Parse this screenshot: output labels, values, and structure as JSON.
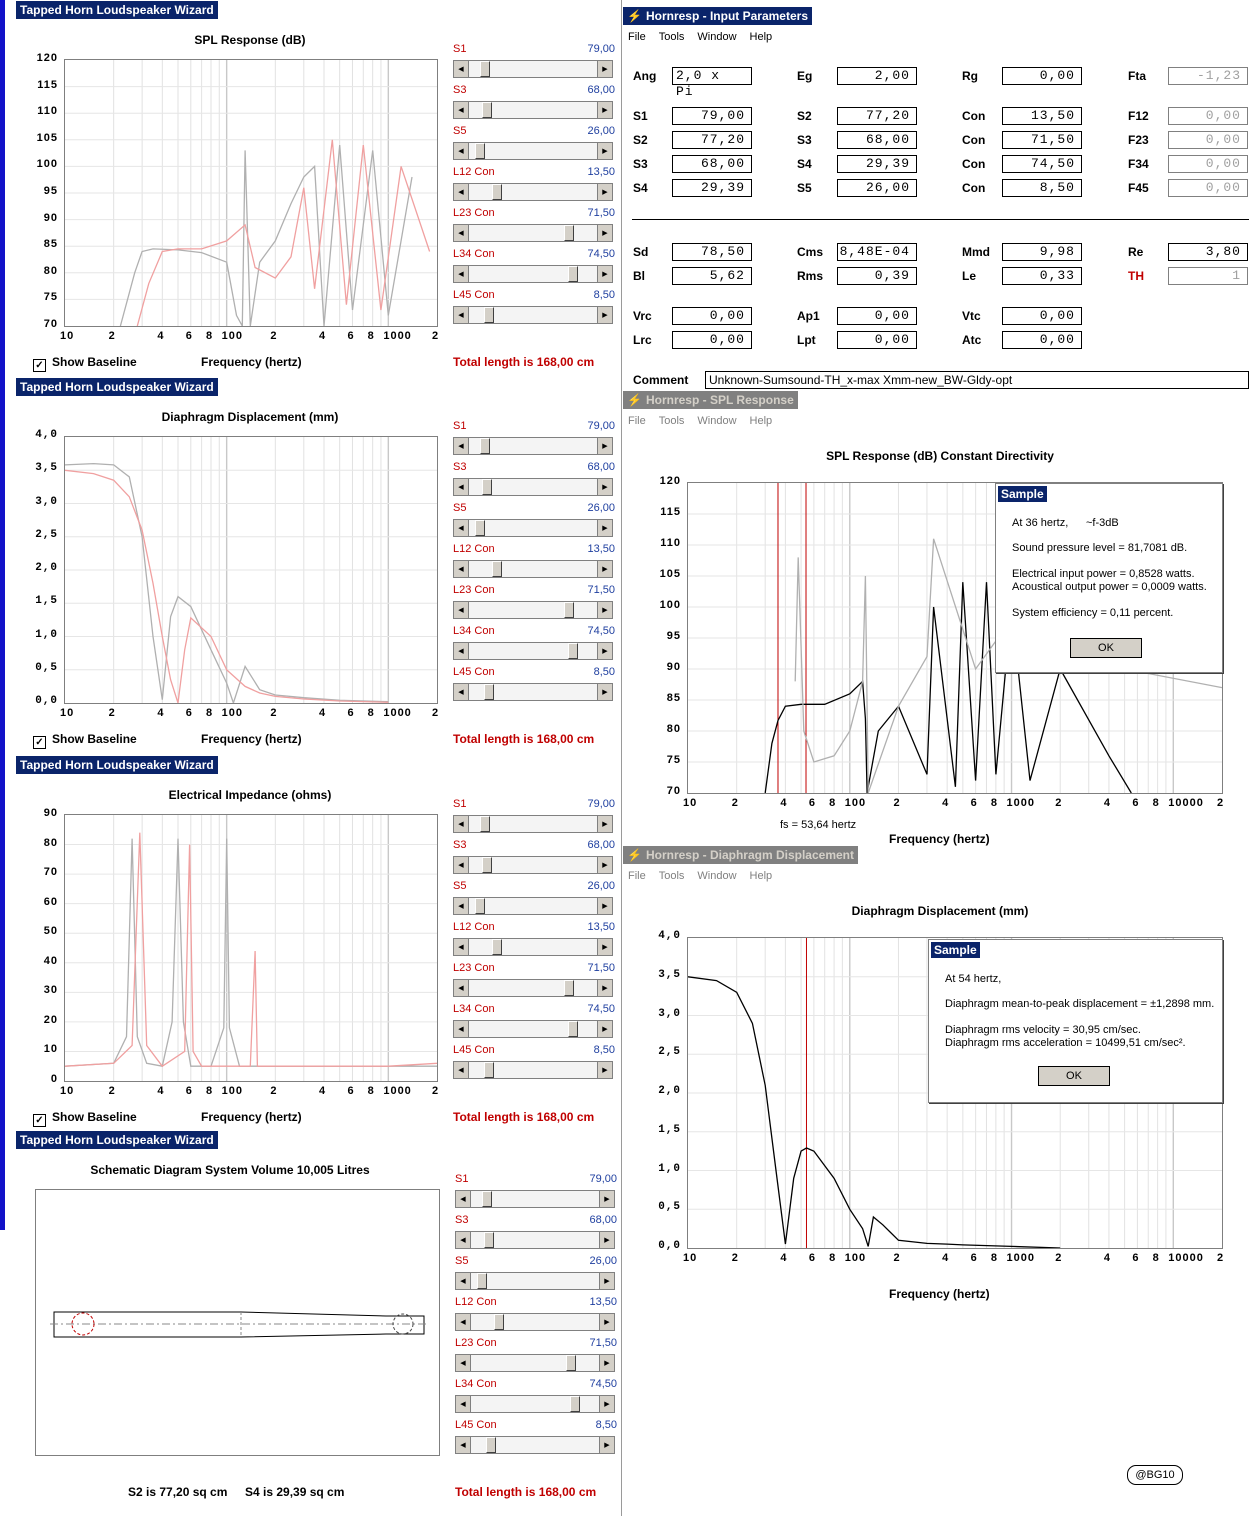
{
  "wizard": {
    "title": "Tapped Horn Loudspeaker Wizard",
    "show_baseline": "Show Baseline",
    "frequency_label": "Frequency (hertz)",
    "total_length": "Total length is 168,00 cm",
    "sliders": [
      {
        "label": "S1",
        "value": "79,00",
        "position": 0.1
      },
      {
        "label": "S3",
        "value": "68,00",
        "position": 0.12
      },
      {
        "label": "S5",
        "value": "26,00",
        "position": 0.06
      },
      {
        "label": "L12  Con",
        "value": "13,50",
        "position": 0.2
      },
      {
        "label": "L23  Con",
        "value": "71,50",
        "position": 0.8
      },
      {
        "label": "L34  Con",
        "value": "74,50",
        "position": 0.83
      },
      {
        "label": "L45  Con",
        "value": "8,50",
        "position": 0.13
      }
    ],
    "x_ticks": [
      "10",
      "2",
      "4",
      "6",
      "8",
      "100",
      "2",
      "4",
      "6",
      "8",
      "1000",
      "2"
    ],
    "spl": {
      "title": "SPL Response (dB)",
      "y_ticks": [
        "120",
        "115",
        "110",
        "105",
        "100",
        "95",
        "90",
        "85",
        "80",
        "75",
        "70"
      ]
    },
    "disp": {
      "title": "Diaphragm Displacement (mm)",
      "y_ticks": [
        "4,0",
        "3,5",
        "3,0",
        "2,5",
        "2,0",
        "1,5",
        "1,0",
        "0,5",
        "0,0"
      ]
    },
    "imp": {
      "title": "Electrical Impedance (ohms)",
      "y_ticks": [
        "90",
        "80",
        "70",
        "60",
        "50",
        "40",
        "30",
        "20",
        "10",
        "0"
      ]
    },
    "schem": {
      "title": "Schematic Diagram    System Volume 10,005 Litres",
      "s2": "S2 is 77,20 sq cm",
      "s4": "S4 is 29,39 sq cm"
    }
  },
  "input_params": {
    "title": "Hornresp - Input Parameters",
    "menu": [
      "File",
      "Tools",
      "Window",
      "Help"
    ],
    "rows": [
      [
        {
          "l": "Ang",
          "v": "2,0 x Pi"
        },
        {
          "l": "Eg",
          "v": "2,00"
        },
        {
          "l": "Rg",
          "v": "0,00"
        },
        {
          "l": "Fta",
          "v": "-1,23",
          "dis": true
        }
      ],
      [
        {
          "l": "S1",
          "v": "79,00"
        },
        {
          "l": "S2",
          "v": "77,20"
        },
        {
          "l": "Con",
          "v": "13,50"
        },
        {
          "l": "F12",
          "v": "0,00",
          "dis": true
        }
      ],
      [
        {
          "l": "S2",
          "v": "77,20"
        },
        {
          "l": "S3",
          "v": "68,00"
        },
        {
          "l": "Con",
          "v": "71,50"
        },
        {
          "l": "F23",
          "v": "0,00",
          "dis": true
        }
      ],
      [
        {
          "l": "S3",
          "v": "68,00"
        },
        {
          "l": "S4",
          "v": "29,39"
        },
        {
          "l": "Con",
          "v": "74,50"
        },
        {
          "l": "F34",
          "v": "0,00",
          "dis": true
        }
      ],
      [
        {
          "l": "S4",
          "v": "29,39"
        },
        {
          "l": "S5",
          "v": "26,00"
        },
        {
          "l": "Con",
          "v": "8,50"
        },
        {
          "l": "F45",
          "v": "0,00",
          "dis": true
        }
      ],
      [
        {
          "l": "Sd",
          "v": "78,50"
        },
        {
          "l": "Cms",
          "v": "8,48E-04"
        },
        {
          "l": "Mmd",
          "v": "9,98"
        },
        {
          "l": "Re",
          "v": "3,80"
        }
      ],
      [
        {
          "l": "Bl",
          "v": "5,62"
        },
        {
          "l": "Rms",
          "v": "0,39"
        },
        {
          "l": "Le",
          "v": "0,33"
        },
        {
          "l": "TH",
          "v": "1",
          "dis": true,
          "red": true
        }
      ],
      [
        {
          "l": "Vrc",
          "v": "0,00"
        },
        {
          "l": "Ap1",
          "v": "0,00"
        },
        {
          "l": "Vtc",
          "v": "0,00"
        }
      ],
      [
        {
          "l": "Lrc",
          "v": "0,00"
        },
        {
          "l": "Lpt",
          "v": "0,00"
        },
        {
          "l": "Atc",
          "v": "0,00"
        }
      ]
    ],
    "comment_label": "Comment",
    "comment": "Unknown-Sumsound-TH_x-max Xmm-new_BW-Gldy-opt"
  },
  "spl_window": {
    "title": "Hornresp - SPL Response",
    "chart_title": "SPL Response (dB)    Constant Directivity",
    "y_ticks": [
      "120",
      "115",
      "110",
      "105",
      "100",
      "95",
      "90",
      "85",
      "80",
      "75",
      "70"
    ],
    "x_ticks": [
      "10",
      "2",
      "4",
      "6",
      "8",
      "100",
      "2",
      "4",
      "6",
      "8",
      "1000",
      "2",
      "4",
      "6",
      "8",
      "10000",
      "2"
    ],
    "fs_label": "fs = 53,64 hertz",
    "xlabel": "Frequency (hertz)",
    "dialog": {
      "title": "Sample",
      "line1": "At 36 hertz,",
      "line1b": "~f-3dB",
      "line2": "Sound pressure level = 81,7081 dB.",
      "line3": "Electrical input power = 0,8528 watts.",
      "line4": "Acoustical output power = 0,0009 watts.",
      "line5": "System efficiency = 0,11 percent.",
      "ok": "OK"
    }
  },
  "disp_window": {
    "title": "Hornresp - Diaphragm Displacement",
    "chart_title": "Diaphragm Displacement (mm)",
    "y_ticks": [
      "4,0",
      "3,5",
      "3,0",
      "2,5",
      "2,0",
      "1,5",
      "1,0",
      "0,5",
      "0,0"
    ],
    "x_ticks": [
      "10",
      "2",
      "4",
      "6",
      "8",
      "100",
      "2",
      "4",
      "6",
      "8",
      "1000",
      "2",
      "4",
      "6",
      "8",
      "10000",
      "2"
    ],
    "xlabel": "Frequency (hertz)",
    "dialog": {
      "title": "Sample",
      "line1": "At 54 hertz,",
      "line2": "Diaphragm mean-to-peak displacement = ±1,2898 mm.",
      "line3": "Diaphragm rms velocity = 30,95 cm/sec.",
      "line4": "Diaphragm rms acceleration = 10499,51 cm/sec².",
      "ok": "OK"
    }
  },
  "badge": "@BG10",
  "chart_data": [
    {
      "type": "line",
      "title": "SPL Response (dB)",
      "xlabel": "Frequency (hertz)",
      "x_scale": "log",
      "xlim": [
        10,
        2000
      ],
      "ylim": [
        70,
        120
      ],
      "series": [
        {
          "color": "#b0b0b0",
          "x": [
            22,
            27,
            30,
            35,
            50,
            70,
            100,
            115,
            125,
            130,
            140,
            160,
            200,
            250,
            300,
            350,
            400,
            500,
            600,
            800,
            1000,
            1400
          ],
          "y": [
            70,
            80,
            84,
            84.5,
            84.3,
            83.8,
            82,
            72,
            70,
            103,
            70,
            82,
            86,
            93,
            98,
            100,
            70,
            104,
            73,
            103,
            72,
            98
          ]
        },
        {
          "color": "#f0a0a0",
          "x": [
            28,
            33,
            40,
            50,
            70,
            100,
            130,
            150,
            200,
            250,
            300,
            350,
            450,
            550,
            700,
            900,
            1200,
            1800
          ],
          "y": [
            70,
            78,
            84,
            84.5,
            84.5,
            86,
            89,
            81,
            79,
            83,
            96,
            77,
            105,
            74,
            104,
            73,
            100,
            84
          ]
        }
      ]
    },
    {
      "type": "line",
      "title": "Diaphragm Displacement (mm)",
      "xlabel": "Frequency (hertz)",
      "x_scale": "log",
      "xlim": [
        10,
        2000
      ],
      "ylim": [
        0,
        4
      ],
      "series": [
        {
          "color": "#b0b0b0",
          "x": [
            10,
            15,
            20,
            25,
            30,
            35,
            40,
            45,
            50,
            60,
            80,
            100,
            110,
            130,
            160,
            200,
            300,
            500,
            1000
          ],
          "y": [
            3.58,
            3.6,
            3.58,
            3.4,
            2.5,
            1.0,
            0.05,
            1.3,
            1.6,
            1.45,
            0.8,
            0.3,
            0.0,
            0.55,
            0.2,
            0.12,
            0.08,
            0.04,
            0.02
          ]
        },
        {
          "color": "#f0a0a0",
          "x": [
            10,
            15,
            20,
            25,
            30,
            35,
            40,
            45,
            50,
            55,
            60,
            80,
            100,
            130,
            160,
            200,
            300,
            500,
            1000
          ],
          "y": [
            3.5,
            3.45,
            3.35,
            3.1,
            2.6,
            1.8,
            1.0,
            0.35,
            0.0,
            0.8,
            1.28,
            1.0,
            0.5,
            0.25,
            0.15,
            0.1,
            0.06,
            0.03,
            0.01
          ]
        }
      ]
    },
    {
      "type": "line",
      "title": "Electrical Impedance (ohms)",
      "xlabel": "Frequency (hertz)",
      "x_scale": "log",
      "xlim": [
        10,
        2000
      ],
      "ylim": [
        0,
        90
      ],
      "series": [
        {
          "color": "#b0b0b0",
          "x": [
            10,
            20,
            24,
            26,
            28,
            32,
            40,
            46,
            50,
            54,
            60,
            80,
            96,
            100,
            104,
            120,
            200,
            1000,
            2000
          ],
          "y": [
            5,
            6,
            15,
            82,
            15,
            6,
            5,
            20,
            82,
            20,
            5,
            5,
            18,
            82,
            18,
            5,
            5,
            5,
            5
          ]
        },
        {
          "color": "#f0a0a0",
          "x": [
            10,
            20,
            26,
            29,
            32,
            40,
            55,
            59,
            62,
            70,
            100,
            140,
            150,
            155,
            200,
            1000,
            2000
          ],
          "y": [
            5,
            6,
            12,
            84,
            12,
            5,
            10,
            80,
            10,
            5,
            5,
            5,
            44,
            5,
            5,
            5,
            6
          ]
        }
      ]
    },
    {
      "type": "line",
      "title": "SPL Response (dB)    Constant Directivity",
      "xlabel": "Frequency (hertz)",
      "x_scale": "log",
      "xlim": [
        10,
        20000
      ],
      "ylim": [
        70,
        120
      ],
      "series": [
        {
          "color": "#000000",
          "x": [
            30,
            33,
            36,
            40,
            50,
            70,
            100,
            120,
            125,
            128,
            150,
            200,
            300,
            330,
            450,
            500,
            600,
            700,
            800,
            1000,
            1300,
            2000,
            4000,
            5500
          ],
          "y": [
            70,
            78,
            81.7,
            84,
            84.3,
            84.3,
            86,
            88,
            82,
            70,
            80,
            84,
            73,
            100,
            71,
            104,
            72,
            104,
            73,
            100,
            72,
            90,
            76,
            70
          ]
        },
        {
          "color": "#b0b0b0",
          "x": [
            46,
            48,
            52,
            60,
            80,
            100,
            120,
            125,
            130,
            200,
            300,
            330,
            600,
            1000,
            5000,
            20000
          ],
          "y": [
            88,
            108,
            80,
            75,
            76,
            80,
            88,
            105,
            70,
            84,
            92,
            111,
            90,
            98,
            90,
            87
          ]
        }
      ],
      "annotations": [
        "fs = 53,64 hertz"
      ]
    },
    {
      "type": "line",
      "title": "Diaphragm Displacement (mm)",
      "xlabel": "Frequency (hertz)",
      "x_scale": "log",
      "xlim": [
        10,
        20000
      ],
      "ylim": [
        0,
        4
      ],
      "series": [
        {
          "color": "#000000",
          "x": [
            10,
            15,
            20,
            25,
            30,
            35,
            40,
            45,
            50,
            54,
            60,
            80,
            100,
            120,
            130,
            140,
            160,
            200,
            300,
            400,
            500,
            1000,
            2000
          ],
          "y": [
            3.5,
            3.45,
            3.3,
            2.9,
            2.1,
            1.0,
            0.05,
            0.9,
            1.25,
            1.29,
            1.25,
            0.9,
            0.5,
            0.25,
            0.02,
            0.4,
            0.3,
            0.1,
            0.06,
            0.05,
            0.04,
            0.02,
            0.0
          ]
        }
      ]
    }
  ]
}
